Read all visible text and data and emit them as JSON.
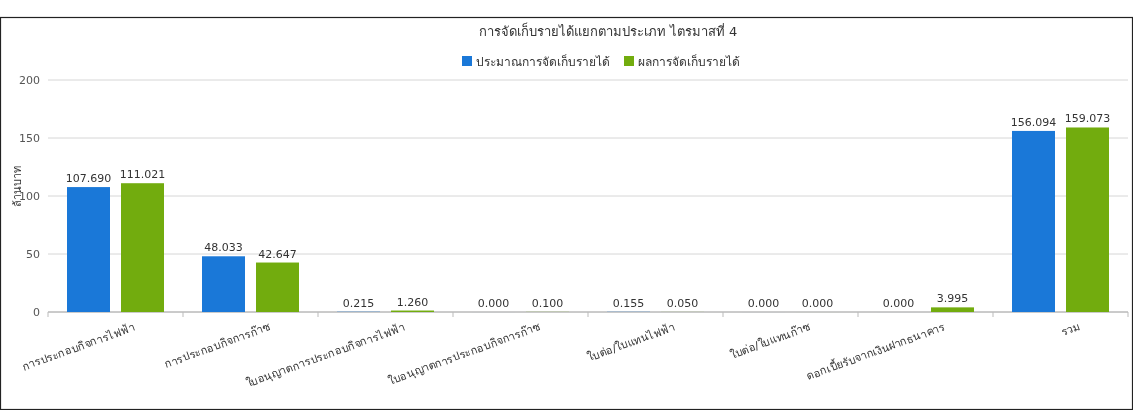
{
  "chart_data": {
    "type": "bar",
    "title": "การจัดเก็บรายได้แยกตามประเภท ไตรมาสที่ 4",
    "ylabel": "ล้านบาท",
    "categories": [
      "การประกอบกิจการไฟฟ้า",
      "การประกอบกิจการก๊าซ",
      "ใบอนุญาตการประกอบกิจการไฟฟ้า",
      "ใบอนุญาตการประกอบกิจการก๊าซ",
      "ใบต่อ/ใบแทนไฟฟ้า",
      "ใบต่อ/ใบแทนก๊าซ",
      "ดอกเบี้ยรับจากเงินฝากธนาคาร",
      "รวม"
    ],
    "series": [
      {
        "name": "ประมาณการจัดเก็บรายได้",
        "color": "#1a78d8",
        "values": [
          107.69,
          48.033,
          0.215,
          0,
          0.155,
          0,
          0,
          156.094
        ],
        "value_labels": [
          "107.690",
          "48.033",
          "0.215",
          "0.000",
          "0.155",
          "0.000",
          "0.000",
          "156.094"
        ]
      },
      {
        "name": "ผลการจัดเก็บรายได้",
        "color": "#72ac0e",
        "values": [
          111.021,
          42.647,
          1.26,
          0.1,
          0.05,
          0,
          3.995,
          159.073
        ],
        "value_labels": [
          "111.021",
          "42.647",
          "1.260",
          "0.100",
          "0.050",
          "0.000",
          "3.995",
          "159.073"
        ]
      }
    ],
    "ylim": [
      0,
      200
    ],
    "yticks": [
      0,
      50,
      100,
      150,
      200
    ],
    "grid": "y",
    "legend": "top"
  }
}
